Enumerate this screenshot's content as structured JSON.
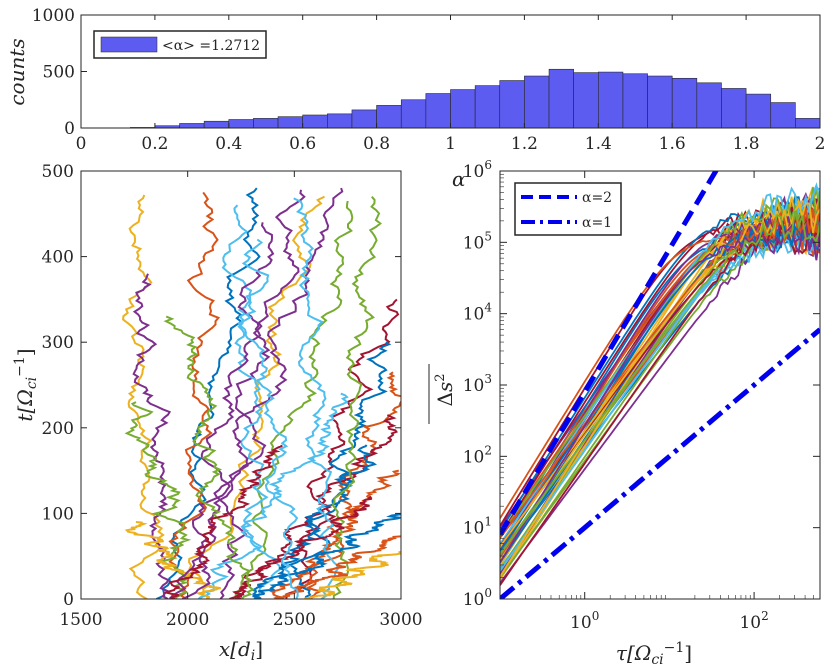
{
  "chart_data": [
    {
      "id": "histogram",
      "type": "bar",
      "title": "",
      "xlabel": "",
      "ylabel": "counts",
      "xlim": [
        0,
        2
      ],
      "ylim": [
        0,
        1000
      ],
      "xticks": [
        "0",
        "0.2",
        "0.4",
        "0.6",
        "0.8",
        "1",
        "1.2",
        "1.4",
        "1.6",
        "1.8",
        "2"
      ],
      "yticks": [
        "0",
        "500",
        "1000"
      ],
      "bin_edges": [
        0.0,
        0.0667,
        0.1333,
        0.2,
        0.2667,
        0.3333,
        0.4,
        0.4667,
        0.5333,
        0.6,
        0.6667,
        0.7333,
        0.8,
        0.8667,
        0.9333,
        1.0,
        1.0667,
        1.1333,
        1.2,
        1.2667,
        1.3333,
        1.4,
        1.4667,
        1.5333,
        1.6,
        1.6667,
        1.7333,
        1.8,
        1.8667,
        1.9333,
        2.0
      ],
      "values": [
        0,
        0,
        5,
        20,
        40,
        60,
        75,
        85,
        100,
        115,
        125,
        160,
        200,
        250,
        305,
        340,
        375,
        420,
        460,
        520,
        490,
        495,
        480,
        460,
        440,
        400,
        350,
        300,
        225,
        85
      ],
      "bar_color": "#5c5cf0",
      "legend": "<α> =1.2712",
      "legend_position": "top-left"
    },
    {
      "id": "trajectories",
      "type": "line",
      "xlabel": "x[d_i]",
      "ylabel": "t[Ω_ci^-1]",
      "xlim": [
        1500,
        3000
      ],
      "ylim": [
        0,
        500
      ],
      "xticks": [
        "1500",
        "2000",
        "2500",
        "3000"
      ],
      "yticks": [
        "0",
        "100",
        "200",
        "300",
        "400",
        "500"
      ],
      "palette": [
        "#0072bd",
        "#d95319",
        "#edb120",
        "#7e2f8e",
        "#77ac30",
        "#4dbeee",
        "#a2142f"
      ],
      "series": [
        {
          "x0": 1880,
          "x1": 2350,
          "t_end": 480
        },
        {
          "x0": 1950,
          "x1": 2130,
          "t_end": 475
        },
        {
          "x0": 2050,
          "x1": 2600,
          "t_end": 470
        },
        {
          "x0": 2150,
          "x1": 2480,
          "t_end": 478
        },
        {
          "x0": 2250,
          "x1": 2780,
          "t_end": 465
        },
        {
          "x0": 2350,
          "x1": 2230,
          "t_end": 460
        },
        {
          "x0": 2450,
          "x1": 2970,
          "t_end": 350
        },
        {
          "x0": 2520,
          "x1": 2950,
          "t_end": 300
        },
        {
          "x0": 2560,
          "x1": 2980,
          "t_end": 265
        },
        {
          "x0": 1820,
          "x1": 1730,
          "t_end": 472
        },
        {
          "x0": 1900,
          "x1": 1770,
          "t_end": 380
        },
        {
          "x0": 2000,
          "x1": 1780,
          "t_end": 230
        },
        {
          "x0": 2080,
          "x1": 2760,
          "t_end": 240
        },
        {
          "x0": 2200,
          "x1": 2990,
          "t_end": 215
        },
        {
          "x0": 2300,
          "x1": 2890,
          "t_end": 180
        },
        {
          "x0": 2400,
          "x1": 2980,
          "t_end": 150
        },
        {
          "x0": 2120,
          "x1": 1760,
          "t_end": 90
        },
        {
          "x0": 1950,
          "x1": 2740,
          "t_end": 480
        },
        {
          "x0": 2700,
          "x1": 2880,
          "t_end": 470
        },
        {
          "x0": 2640,
          "x1": 2500,
          "t_end": 468
        },
        {
          "x0": 2180,
          "x1": 2920,
          "t_end": 120
        },
        {
          "x0": 2330,
          "x1": 2960,
          "t_end": 100
        },
        {
          "x0": 2460,
          "x1": 2990,
          "t_end": 75
        },
        {
          "x0": 2600,
          "x1": 2970,
          "t_end": 55
        },
        {
          "x0": 2010,
          "x1": 2380,
          "t_end": 440
        },
        {
          "x0": 2270,
          "x1": 1960,
          "t_end": 330
        },
        {
          "x0": 2500,
          "x1": 2300,
          "t_end": 420
        },
        {
          "x0": 1900,
          "x1": 2420,
          "t_end": 180
        }
      ]
    },
    {
      "id": "msd",
      "type": "line",
      "scale": "log-log",
      "xlabel": "τ[Ω_ci^-1]",
      "ylabel": "Δs²",
      "xlim": [
        0.1,
        600
      ],
      "ylim": [
        1,
        1000000
      ],
      "xticks": [
        "10^0",
        "10^2"
      ],
      "yticks": [
        "10^0",
        "10^1",
        "10^2",
        "10^3",
        "10^4",
        "10^5",
        "10^6"
      ],
      "alpha_label": "α",
      "legend": [
        {
          "label": "α=2",
          "style": "dashed",
          "color": "#0000ee",
          "slope": 2,
          "y_at_first": 8
        },
        {
          "label": "α=1",
          "style": "dashdot",
          "color": "#0000ee",
          "slope": 1,
          "y_at_first": 1
        }
      ],
      "legend_position": "top-left",
      "series_slope_min": 1.55,
      "series_slope_max": 1.95,
      "series_intercepts_min": 1.3,
      "series_intercepts_max": 14,
      "saturation_range": [
        100000,
        400000
      ],
      "series_count": 40
    }
  ]
}
